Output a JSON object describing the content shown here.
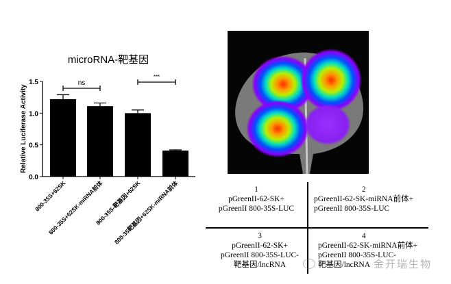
{
  "chart_data": {
    "type": "bar",
    "title": "microRNA-靶基因",
    "ylabel": "Relative Luciferase Activity",
    "xlabel": "",
    "ylim": [
      0,
      1.5
    ],
    "yticks": [
      "0.0",
      "0.5",
      "1.0",
      "1.5"
    ],
    "categories": [
      "800-35S+62SK",
      "800-35S+62SK-miRNA前体",
      "800-35S-靶基因+62SK",
      "800-35靶基因+62SK-miRNA前体"
    ],
    "values": [
      1.22,
      1.11,
      1.0,
      0.41
    ],
    "errors": [
      0.07,
      0.05,
      0.05,
      0.01
    ],
    "bar_color": "#000000",
    "significance": [
      {
        "between": [
          0,
          1
        ],
        "label": "ns"
      },
      {
        "between": [
          2,
          3
        ],
        "label": "***"
      }
    ]
  },
  "image": {
    "description_icon": "luciferase-leaf-image"
  },
  "table": {
    "cells": [
      {
        "num": "1",
        "lines": [
          "pGreenII-62-SK+",
          "pGreenII 800-35S-LUC"
        ]
      },
      {
        "num": "2",
        "lines": [
          "pGreenII-62-SK-miRNA前体+",
          "pGreenII 800-35S-LUC"
        ]
      },
      {
        "num": "3",
        "lines": [
          "pGreenII-62-SK+",
          "pGreenII 800-35S-LUC-",
          "靶基因/lncRNA"
        ]
      },
      {
        "num": "4",
        "lines": [
          "pGreenII-62-SK-miRNA前体+",
          "pGreenII 800-35S-LUC-",
          "靶基因/lncRNA"
        ]
      }
    ]
  },
  "watermark": "金开瑞生物"
}
